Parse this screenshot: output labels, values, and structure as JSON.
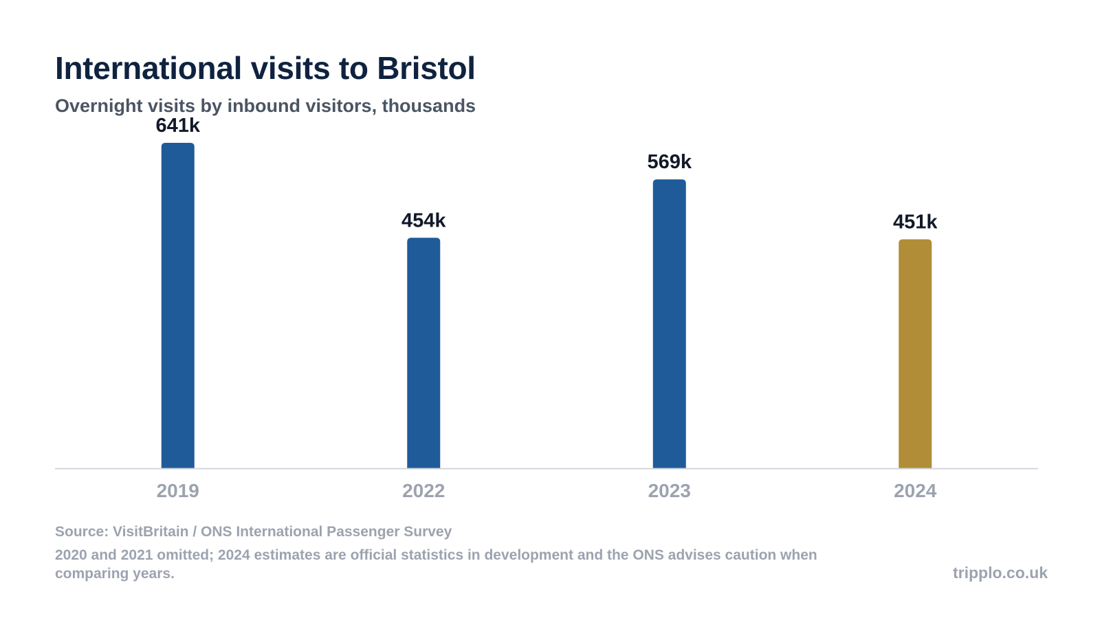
{
  "header": {
    "title": "International visits to Bristol",
    "subtitle": "Overnight visits by inbound visitors, thousands"
  },
  "footer": {
    "source": "Source: VisitBritain / ONS International Passenger Survey",
    "note": "2020 and 2021 omitted; 2024 estimates are official statistics in development and the ONS advises caution when comparing years.",
    "brand": "tripplo.co.uk"
  },
  "colors": {
    "bar": "#1f5b99",
    "highlight": "#b08d36",
    "axis": "#d1d5db"
  },
  "chart_data": {
    "type": "bar",
    "title": "International visits to Bristol",
    "subtitle": "Overnight visits by inbound visitors, thousands",
    "categories": [
      "2019",
      "2022",
      "2023",
      "2024"
    ],
    "values": [
      641,
      454,
      569,
      451
    ],
    "value_labels": [
      "641k",
      "454k",
      "569k",
      "451k"
    ],
    "highlight_category": "2024",
    "ylim": [
      0,
      641
    ],
    "grid": false,
    "legend": "none"
  }
}
